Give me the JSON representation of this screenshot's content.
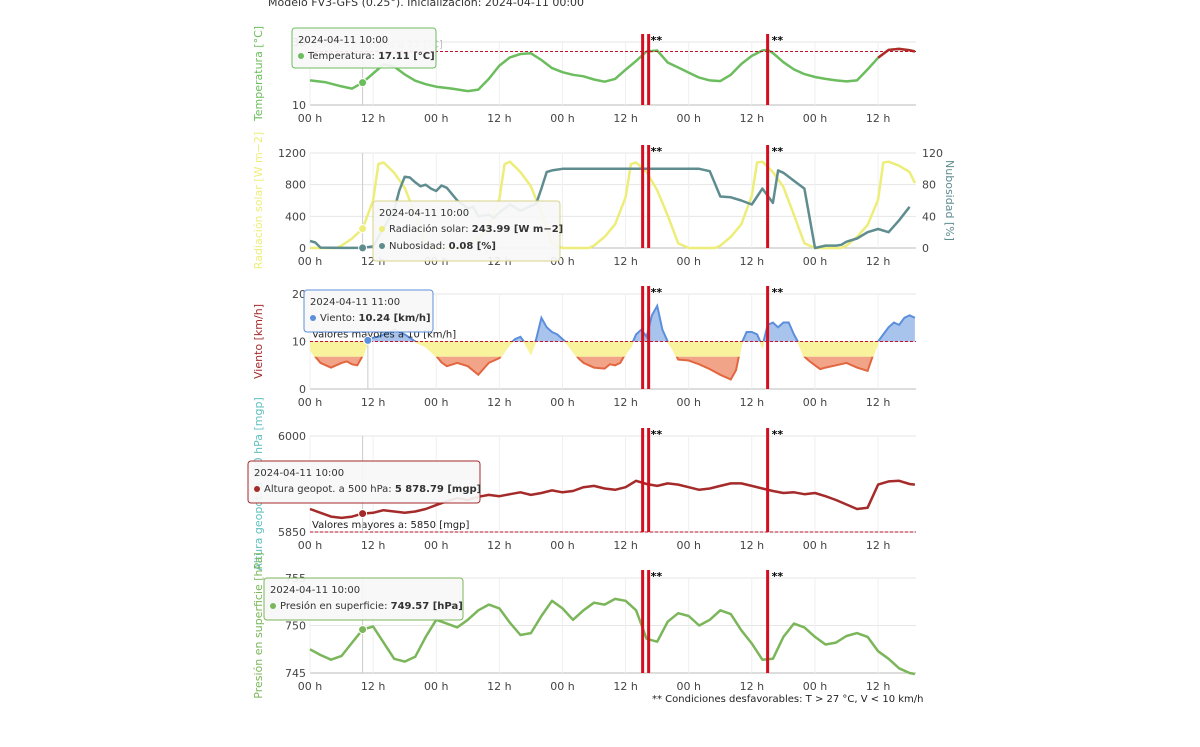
{
  "header": "Modelo FV3-GFS (0.25°). Inicialización: 2024-04-11 00:00",
  "footnote": "** Condiciones desfavorables: T > 27 °C, V < 10 km/h",
  "colors": {
    "temperature": "#6cbd5e",
    "temperature_hot": "#b22b2b",
    "solar": "#eded7a",
    "cloud": "#5f8d8f",
    "wind": "#5b8fdc",
    "wind_high_fill": "#a9c4ec",
    "wind_mid_fill": "#f8f39c",
    "wind_low_fill": "#f2a488",
    "wind_low_line": "#e2663f",
    "wind_dark": "#a8182a",
    "geopot": "#a52a2a",
    "pressure": "#7bb65a",
    "marker": "#d10f1f",
    "threshold": "#c0102b",
    "grid": "#e6e6e6"
  },
  "chart_data": [
    {
      "type": "line",
      "ylabel": "Temperatura [°C]",
      "ylim": [
        10,
        30
      ],
      "y_ticks": [
        "10",
        "30"
      ],
      "x_ticks": [
        "00 h",
        "12 h",
        "00 h",
        "12 h",
        "00 h",
        "12 h",
        "00 h",
        "12 h",
        "00 h",
        "12 h"
      ],
      "x_tick_hours": [
        0,
        12,
        24,
        36,
        48,
        60,
        72,
        84,
        96,
        108
      ],
      "threshold": {
        "value": 27,
        "label": "Valores mayores a 27 [°C]"
      },
      "markers": [
        {
          "x": 64,
          "label": "**"
        },
        {
          "x": 87,
          "label": "**"
        }
      ],
      "series": [
        {
          "name": "Temperatura",
          "x": [
            0,
            3,
            6,
            8,
            10,
            12,
            14,
            16,
            18,
            20,
            22,
            24,
            27,
            30,
            32,
            34,
            36,
            38,
            40,
            42,
            44,
            46,
            48,
            50,
            52,
            54,
            56,
            58,
            60,
            62,
            64,
            66,
            68,
            70,
            72,
            74,
            76,
            78,
            80,
            82,
            84,
            86,
            87,
            88,
            90,
            92,
            94,
            96,
            98,
            100,
            102,
            104,
            106,
            108,
            110,
            112,
            114,
            115
          ],
          "values": [
            17.8,
            17.2,
            15.9,
            15.2,
            17.11,
            20.0,
            22.9,
            22.2,
            19.7,
            17.7,
            16.6,
            15.8,
            15.2,
            14.4,
            14.9,
            18.3,
            22.5,
            25.1,
            26.2,
            26.4,
            24.3,
            21.7,
            20.4,
            19.6,
            19.1,
            18.1,
            17.4,
            18.3,
            21.2,
            24.0,
            27.0,
            27.3,
            23.5,
            21.9,
            20.3,
            18.7,
            17.8,
            17.6,
            19.6,
            23.0,
            25.6,
            27.3,
            27.5,
            26.5,
            23.6,
            21.3,
            19.8,
            18.9,
            18.3,
            17.8,
            17.5,
            17.8,
            21.3,
            25.0,
            27.5,
            27.8,
            27.4,
            27.0
          ],
          "hot_from": 107
        }
      ],
      "tooltip": {
        "x": 10,
        "title": "2024-04-11 10:00",
        "rows": [
          {
            "label": "Temperatura",
            "value": "17.11 [°C]"
          }
        ]
      }
    },
    {
      "type": "line",
      "ylabel": "Radiación solar [W m−2]",
      "ylabel_right": "Nubosidad [%]",
      "ylim": [
        0,
        1200
      ],
      "ylim_right": [
        0,
        120
      ],
      "y_ticks": [
        "0",
        "400",
        "800",
        "1200"
      ],
      "y_ticks_right": [
        "0",
        "40",
        "80",
        "120"
      ],
      "x_ticks": [
        "00 h",
        "12 h",
        "00 h",
        "12 h",
        "00 h",
        "12 h",
        "00 h",
        "12 h",
        "00 h",
        "12 h"
      ],
      "markers": [
        {
          "x": 64,
          "label": "**"
        },
        {
          "x": 87,
          "label": "**"
        }
      ],
      "series": [
        {
          "name": "Radiación solar",
          "x": [
            0,
            5,
            6,
            8,
            10,
            12,
            13,
            14,
            16,
            18,
            20,
            22,
            24,
            29,
            30,
            32,
            34,
            36,
            37,
            38,
            40,
            42,
            44,
            46,
            48,
            53,
            54,
            56,
            58,
            60,
            61,
            62,
            64,
            66,
            68,
            70,
            72,
            77,
            78,
            80,
            82,
            84,
            85,
            86,
            88,
            90,
            92,
            94,
            96,
            101,
            102,
            104,
            106,
            108,
            109,
            110,
            112,
            114,
            115
          ],
          "values": [
            0,
            0,
            30,
            120,
            243.99,
            600,
            1060,
            1080,
            950,
            760,
            430,
            60,
            0,
            0,
            30,
            120,
            260,
            620,
            1060,
            1090,
            960,
            780,
            450,
            60,
            0,
            0,
            30,
            140,
            300,
            640,
            1060,
            1080,
            960,
            730,
            410,
            60,
            0,
            0,
            30,
            140,
            300,
            660,
            1080,
            1090,
            960,
            770,
            420,
            60,
            0,
            0,
            30,
            140,
            290,
            610,
            1080,
            1090,
            1040,
            960,
            820
          ]
        },
        {
          "name": "Nubosidad",
          "axis": "right",
          "x": [
            0,
            1,
            2,
            4,
            6,
            8,
            10,
            12,
            14,
            16,
            17,
            18,
            19,
            20,
            21,
            22,
            23,
            24,
            25,
            26,
            28,
            30,
            31,
            32,
            34,
            35,
            36,
            38,
            40,
            42,
            43,
            44,
            45,
            46,
            47,
            48,
            52,
            56,
            60,
            62,
            64,
            66,
            68,
            70,
            72,
            74,
            76,
            78,
            80,
            82,
            84,
            86,
            88,
            89,
            90,
            92,
            94,
            96,
            98,
            100,
            101,
            102,
            104,
            106,
            108,
            110,
            112,
            114
          ],
          "values": [
            9,
            7,
            0.5,
            0.2,
            0.1,
            0.08,
            0.08,
            2,
            25,
            48,
            73,
            90,
            89,
            83,
            78,
            80,
            75,
            72,
            79,
            76,
            60,
            50,
            52,
            40,
            42,
            38,
            45,
            55,
            47,
            53,
            56,
            75,
            96,
            98,
            99,
            100,
            100,
            100,
            100,
            100,
            100,
            100,
            100,
            100,
            100,
            100,
            97,
            65,
            64,
            60,
            55,
            75,
            57,
            98,
            95,
            85,
            75,
            0,
            3,
            3,
            4,
            8,
            12,
            20,
            24,
            20,
            35,
            52
          ]
        }
      ],
      "tooltip": {
        "x": 10,
        "title": "2024-04-11 10:00",
        "rows": [
          {
            "label": "Radiación solar",
            "value": "243.99 [W m−2]"
          },
          {
            "label": "Nubosidad",
            "value": "0.08 [%]"
          }
        ]
      }
    },
    {
      "type": "area",
      "ylabel": "Viento [km/h]",
      "ylim": [
        0,
        20
      ],
      "y_ticks": [
        "0",
        "10",
        "20"
      ],
      "x_ticks": [
        "00 h",
        "12 h",
        "00 h",
        "12 h",
        "00 h",
        "12 h",
        "00 h",
        "12 h",
        "00 h",
        "12 h"
      ],
      "threshold": {
        "value": 10,
        "label": "Valores mayores a 10 [km/h]"
      },
      "low_band": 6.8,
      "markers": [
        {
          "x": 64,
          "label": "**"
        },
        {
          "x": 87,
          "label": "**"
        }
      ],
      "series": [
        {
          "name": "Viento",
          "x": [
            0,
            1,
            2,
            4,
            6,
            7,
            8,
            9,
            10,
            11,
            12,
            13,
            14,
            16,
            18,
            20,
            22,
            24,
            25,
            26,
            28,
            30,
            32,
            34,
            36,
            38,
            39,
            40,
            41,
            42,
            43,
            44,
            45,
            46,
            47,
            48,
            49,
            50,
            51,
            52,
            54,
            56,
            57,
            58,
            59,
            60,
            61,
            62,
            63,
            64,
            65,
            66,
            67,
            68,
            69,
            70,
            72,
            74,
            76,
            78,
            80,
            81,
            82,
            83,
            84,
            85,
            86,
            87,
            88,
            89,
            90,
            91,
            92,
            93,
            94,
            95,
            96,
            97,
            98,
            100,
            102,
            104,
            106,
            107,
            108,
            109,
            110,
            111,
            112,
            113,
            114,
            115
          ],
          "values": [
            8.5,
            6.8,
            5.5,
            4.5,
            5.5,
            5.8,
            5.2,
            5.0,
            7.0,
            10.24,
            10.8,
            11.0,
            11.5,
            12.5,
            11.5,
            10.0,
            9.0,
            7.0,
            5.6,
            4.8,
            5.5,
            4.8,
            3.0,
            5.5,
            6.5,
            9.5,
            10.5,
            11.0,
            9.5,
            7.5,
            10.5,
            15.0,
            13.0,
            12.0,
            11.5,
            10.5,
            9.5,
            8.0,
            6.5,
            5.5,
            4.5,
            4.3,
            5.2,
            5.0,
            5.5,
            7.5,
            9.0,
            11.5,
            12.5,
            11.0,
            15.5,
            17.5,
            12.5,
            10.0,
            8.5,
            6.2,
            6.0,
            5.2,
            4.2,
            3.0,
            2.0,
            4.0,
            9.5,
            12.0,
            12.0,
            11.5,
            9.0,
            13.5,
            14.0,
            13.0,
            14.0,
            14.0,
            11.5,
            9.5,
            6.8,
            5.8,
            5.0,
            4.2,
            4.5,
            5.0,
            5.5,
            4.5,
            3.8,
            7.0,
            10.0,
            11.5,
            13.0,
            14.0,
            13.5,
            15.0,
            15.5,
            15.0
          ]
        }
      ],
      "tooltip": {
        "x": 11,
        "title": "2024-04-11 11:00",
        "rows": [
          {
            "label": "Viento",
            "value": "10.24 [km/h]"
          }
        ]
      }
    },
    {
      "type": "line",
      "ylabel": "Altura geopot. a 500 hPa [mgp]",
      "ylim": [
        5850,
        6000
      ],
      "y_ticks": [
        "5850",
        "6000"
      ],
      "x_ticks": [
        "00 h",
        "12 h",
        "00 h",
        "12 h",
        "00 h",
        "12 h",
        "00 h",
        "12 h",
        "00 h",
        "12 h"
      ],
      "threshold": {
        "value": 5850,
        "label": "Valores mayores a: 5850 [mgp]"
      },
      "markers": [
        {
          "x": 64,
          "label": "**"
        },
        {
          "x": 87,
          "label": "**"
        }
      ],
      "series": [
        {
          "name": "Altura geopot. a 500 hPa",
          "x": [
            0,
            2,
            4,
            6,
            8,
            10,
            12,
            14,
            16,
            18,
            20,
            22,
            24,
            26,
            28,
            30,
            32,
            34,
            36,
            38,
            40,
            42,
            44,
            46,
            48,
            50,
            52,
            54,
            56,
            58,
            60,
            62,
            64,
            66,
            68,
            70,
            72,
            74,
            76,
            78,
            80,
            82,
            84,
            86,
            88,
            90,
            92,
            94,
            96,
            98,
            100,
            102,
            104,
            106,
            108,
            110,
            112,
            114,
            115
          ],
          "values": [
            5886,
            5880,
            5874,
            5872,
            5874,
            5878.79,
            5880,
            5884,
            5882,
            5880,
            5882,
            5886,
            5892,
            5898,
            5903,
            5900,
            5905,
            5908,
            5906,
            5909,
            5912,
            5908,
            5911,
            5915,
            5912,
            5914,
            5920,
            5922,
            5918,
            5916,
            5920,
            5930,
            5925,
            5922,
            5926,
            5924,
            5920,
            5916,
            5918,
            5922,
            5926,
            5926,
            5922,
            5918,
            5914,
            5911,
            5912,
            5909,
            5911,
            5906,
            5900,
            5893,
            5886,
            5888,
            5924,
            5929,
            5930,
            5925,
            5924
          ]
        }
      ],
      "tooltip": {
        "x": 10,
        "title": "2024-04-11 10:00",
        "rows": [
          {
            "label": "Altura geopot. a 500 hPa",
            "value": "5 878.79 [mgp]"
          }
        ]
      }
    },
    {
      "type": "line",
      "ylabel": "Presión en superficie [hPa]",
      "ylim": [
        745,
        755
      ],
      "y_ticks": [
        "745",
        "750",
        "755"
      ],
      "x_ticks": [
        "00 h",
        "12 h",
        "00 h",
        "12 h",
        "00 h",
        "12 h",
        "00 h",
        "12 h",
        "00 h",
        "12 h"
      ],
      "markers": [
        {
          "x": 64,
          "label": "**"
        },
        {
          "x": 87,
          "label": "**"
        }
      ],
      "series": [
        {
          "name": "Presión en superficie",
          "x": [
            0,
            2,
            4,
            6,
            8,
            10,
            12,
            14,
            16,
            18,
            20,
            22,
            24,
            26,
            28,
            30,
            32,
            34,
            36,
            38,
            40,
            42,
            44,
            46,
            48,
            50,
            52,
            54,
            56,
            58,
            60,
            62,
            64,
            66,
            68,
            70,
            72,
            74,
            76,
            78,
            80,
            82,
            84,
            86,
            88,
            90,
            92,
            94,
            96,
            98,
            100,
            102,
            104,
            106,
            108,
            110,
            112,
            114,
            115
          ],
          "values": [
            747.5,
            746.9,
            746.4,
            746.8,
            748.2,
            749.57,
            749.9,
            748.2,
            746.5,
            746.2,
            746.7,
            748.8,
            750.6,
            750.2,
            749.8,
            750.6,
            751.6,
            752.2,
            751.8,
            750.3,
            749.0,
            749.2,
            751.0,
            752.6,
            751.8,
            750.6,
            751.6,
            752.4,
            752.2,
            752.8,
            752.6,
            751.6,
            748.6,
            748.3,
            750.4,
            751.3,
            751.0,
            750.0,
            750.6,
            751.6,
            751.2,
            749.5,
            748.1,
            746.4,
            746.5,
            748.8,
            750.2,
            749.8,
            748.8,
            748.0,
            748.2,
            748.9,
            749.2,
            748.8,
            747.3,
            746.5,
            745.5,
            745.0,
            744.9
          ]
        }
      ],
      "tooltip": {
        "x": 10,
        "title": "2024-04-11 10:00",
        "rows": [
          {
            "label": "Presión en superficie",
            "value": "749.57 [hPa]"
          }
        ]
      }
    }
  ]
}
